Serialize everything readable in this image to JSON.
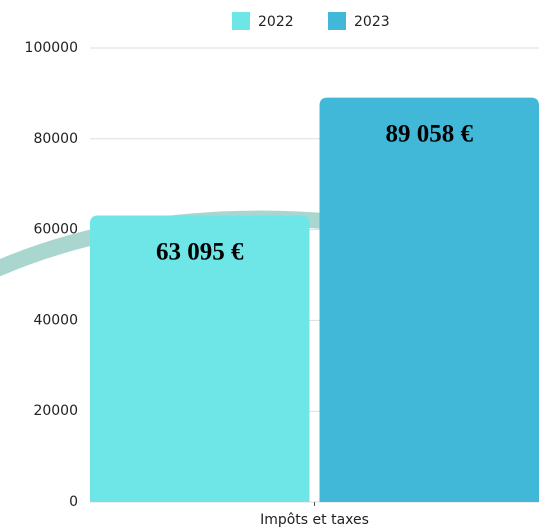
{
  "chart_data": {
    "type": "bar",
    "categories": [
      "Impôts et taxes"
    ],
    "series": [
      {
        "name": "2022",
        "color": "#6ee6e8",
        "values": [
          63095
        ],
        "value_labels": [
          "63 095 €"
        ]
      },
      {
        "name": "2023",
        "color": "#41b8d8",
        "values": [
          89058
        ],
        "value_labels": [
          "89 058 €"
        ]
      }
    ],
    "ylim": [
      0,
      100000
    ],
    "yticks": [
      0,
      20000,
      40000,
      60000,
      80000,
      100000
    ],
    "grid": true,
    "legend": "top"
  }
}
